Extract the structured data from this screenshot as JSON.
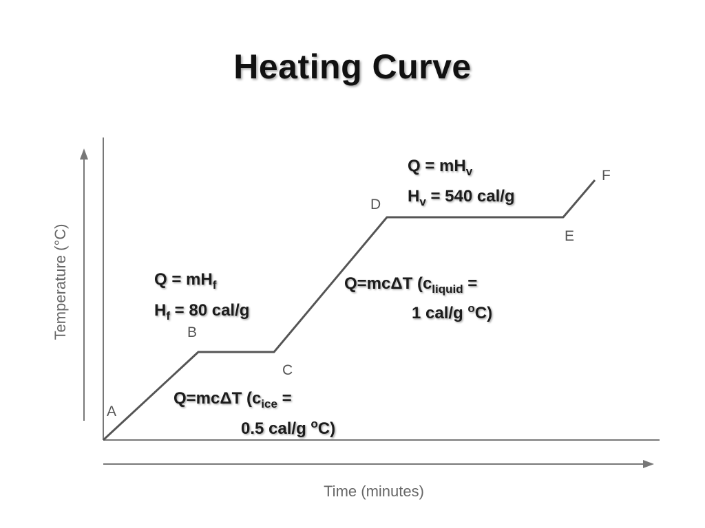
{
  "title": "Heating Curve",
  "chart_data": {
    "type": "line",
    "title": "Heating Curve",
    "xlabel": "Time (minutes)",
    "ylabel": "Temperature (°C)",
    "points": [
      {
        "label": "A"
      },
      {
        "label": "B"
      },
      {
        "label": "C"
      },
      {
        "label": "D"
      },
      {
        "label": "E"
      },
      {
        "label": "F"
      }
    ],
    "annotations": {
      "ab": {
        "line1": "Q=mcΔT  (c",
        "sub": "ice",
        "line1_end": " =",
        "line2": "0.5 cal/g ",
        "sup": "o",
        "line2_end": "C)"
      },
      "bc": {
        "line1a": "Q = mH",
        "sub1": "f",
        "line2a": "H",
        "sub2": "f",
        "line2b": " = 80 cal/g"
      },
      "cd": {
        "line1": "Q=mcΔT  (c",
        "sub": "liquid",
        "line1_end": " =",
        "line2": "1 cal/g ",
        "sup": "o",
        "line2_end": "C)"
      },
      "de": {
        "line1a": "Q = mH",
        "sub1": "v",
        "line2a": "H",
        "sub2": "v",
        "line2b": " = 540 cal/g"
      }
    }
  }
}
